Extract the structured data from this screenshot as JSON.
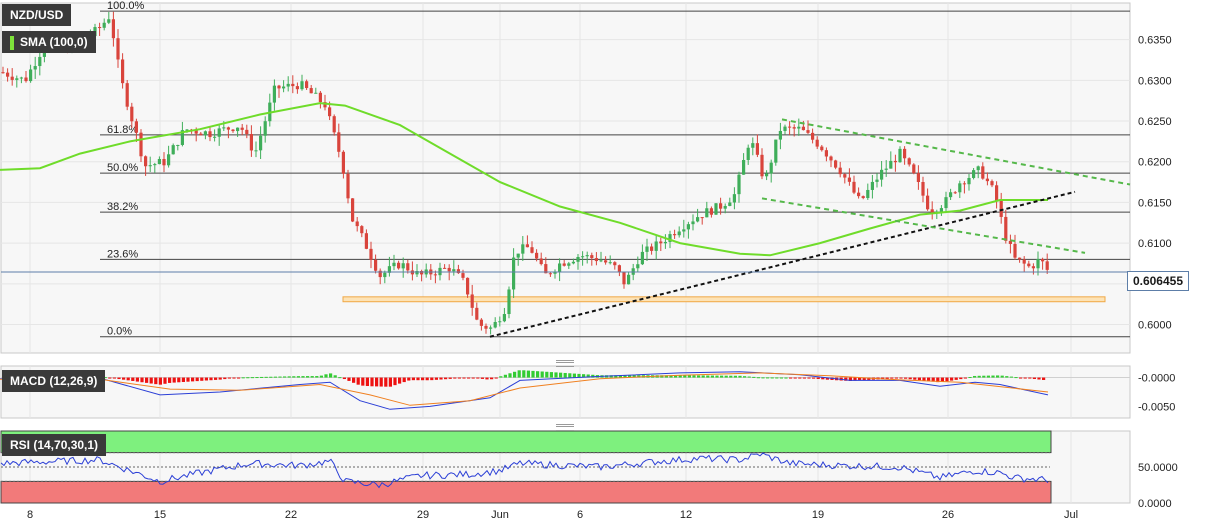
{
  "chart_data": [
    {
      "type": "candlestick",
      "symbol": "NZD/USD",
      "indicator": "SMA (100,0)",
      "current_price": "0.606455",
      "ylim": [
        0.5965,
        0.6395
      ],
      "y_ticks": [
        "0.6350",
        "0.6300",
        "0.6250",
        "0.6200",
        "0.6150",
        "0.6100",
        "0.6050",
        "0.6000"
      ],
      "fib_levels": [
        {
          "label": "100.0%",
          "value": 0.6385
        },
        {
          "label": "61.8%",
          "value": 0.6233
        },
        {
          "label": "50.0%",
          "value": 0.6186
        },
        {
          "label": "38.2%",
          "value": 0.6138
        },
        {
          "label": "23.6%",
          "value": 0.608
        },
        {
          "label": "0.0%",
          "value": 0.5985
        }
      ],
      "support_zone": [
        0.6028,
        0.6034
      ],
      "grid": true
    },
    {
      "type": "line",
      "name": "MACD (12,26,9)",
      "y_ticks": [
        "-0.0000",
        "-0.0050"
      ],
      "ylim": [
        -0.007,
        0.002
      ]
    },
    {
      "type": "line",
      "name": "RSI (14,70,30,1)",
      "y_ticks": [
        "50.0000",
        "0.0000"
      ],
      "ylim": [
        0,
        100
      ],
      "overbought": 70,
      "oversold": 30
    }
  ],
  "x_labels": [
    "8",
    "15",
    "22",
    "29",
    "Jun",
    "6",
    "12",
    "19",
    "26",
    "Jul"
  ],
  "labels": {
    "symbol": "NZD/USD",
    "sma": "SMA (100,0)",
    "macd": "MACD (12,26,9)",
    "rsi": "RSI (14,70,30,1)",
    "price": "0.606455"
  },
  "colors": {
    "up": "#3fae5a",
    "down": "#d9443c",
    "sma": "#6fdc2a",
    "fib_line": "#444444",
    "trend_black": "#111111",
    "trend_green": "#55b84a",
    "zone_fill": "#fde3b6",
    "zone_stroke": "#f0a845",
    "macd_line": "#2b3fd6",
    "signal_line": "#f08020",
    "rsi_line": "#2b3fd6",
    "rsi_overbought": "#7ef07e",
    "rsi_oversold": "#f27a7a"
  }
}
